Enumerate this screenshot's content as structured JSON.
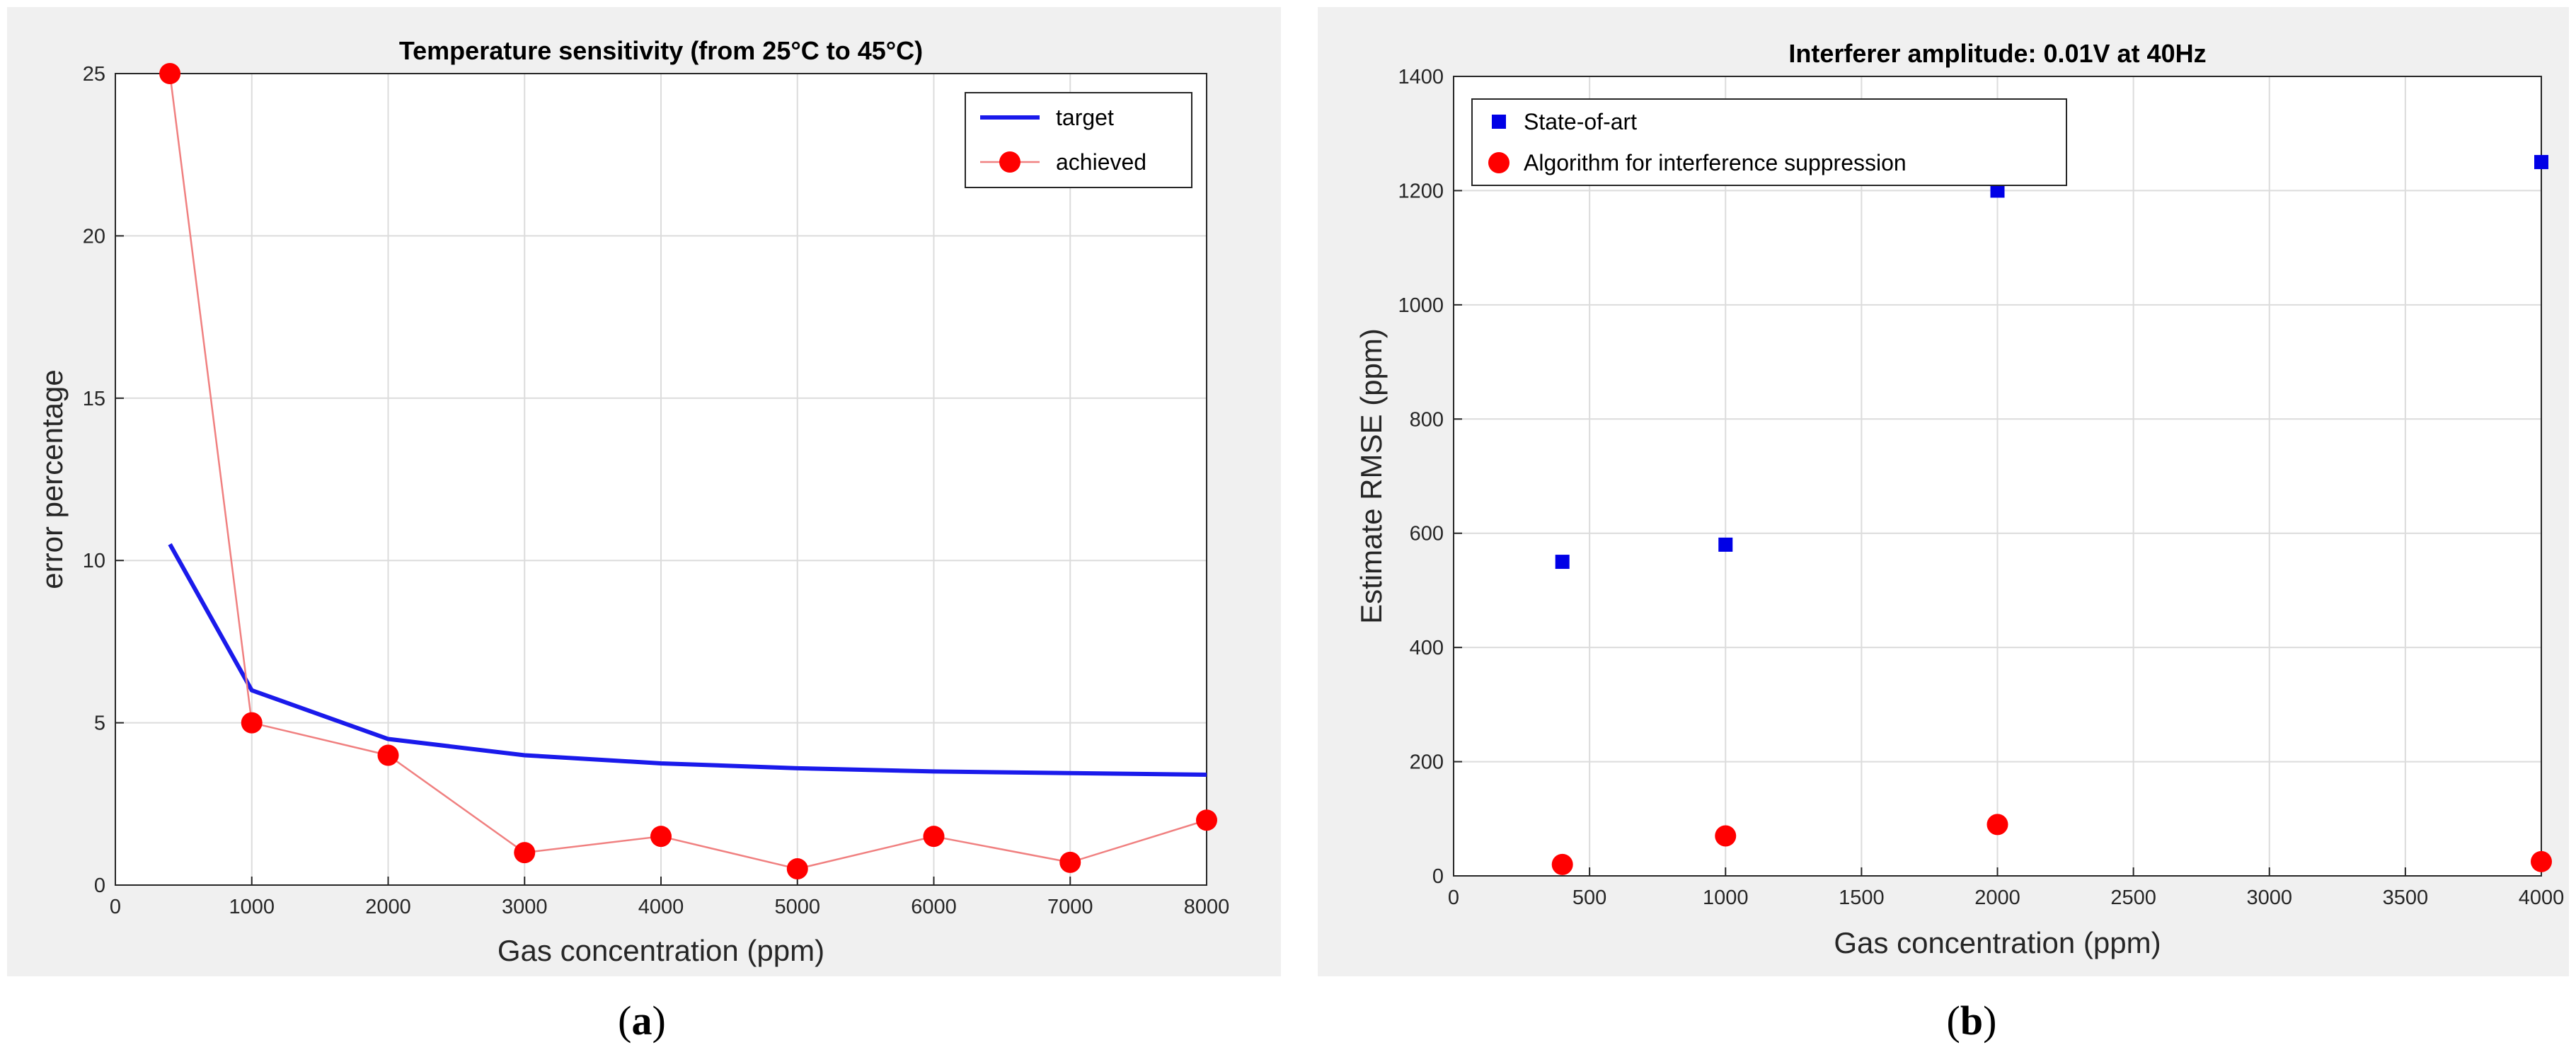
{
  "chart_data": [
    {
      "type": "line",
      "caption": "(a)",
      "caption_parts": [
        "(",
        "a",
        ")"
      ],
      "title": "Temperature sensitivity (from 25°C to 45°C)",
      "xlabel": "Gas concentration (ppm)",
      "ylabel": "error percentage",
      "xlim": [
        0,
        8000
      ],
      "ylim": [
        0,
        25
      ],
      "xticks": [
        0,
        1000,
        2000,
        3000,
        4000,
        5000,
        6000,
        7000,
        8000
      ],
      "yticks": [
        0,
        5,
        10,
        15,
        20,
        25
      ],
      "grid": true,
      "legend_position": "top-right",
      "series": [
        {
          "name": "target",
          "style": "line",
          "color": "#1a1aeb",
          "x": [
            400,
            1000,
            2000,
            3000,
            4000,
            5000,
            6000,
            7000,
            8000
          ],
          "y": [
            10.5,
            6.0,
            4.5,
            4.0,
            3.75,
            3.6,
            3.5,
            3.45,
            3.4
          ]
        },
        {
          "name": "achieved",
          "style": "line-marker",
          "color": "#ff0000",
          "line_color": "#f08080",
          "x": [
            400,
            1000,
            2000,
            3000,
            4000,
            5000,
            6000,
            7000,
            8000
          ],
          "y": [
            25,
            5,
            4,
            1,
            1.5,
            0.5,
            1.5,
            0.7,
            2
          ]
        }
      ]
    },
    {
      "type": "scatter",
      "caption": "(b)",
      "caption_parts": [
        "(",
        "b",
        ")"
      ],
      "title": "Interferer amplitude: 0.01V at 40Hz",
      "xlabel": "Gas concentration (ppm)",
      "ylabel": "Estimate RMSE (ppm)",
      "xlim": [
        0,
        4000
      ],
      "ylim": [
        0,
        1400
      ],
      "xticks": [
        0,
        500,
        1000,
        1500,
        2000,
        2500,
        3000,
        3500,
        4000
      ],
      "yticks": [
        0,
        200,
        400,
        600,
        800,
        1000,
        1200,
        1400
      ],
      "grid": true,
      "legend_position": "top-left",
      "series": [
        {
          "name": "State-of-art",
          "marker": "square",
          "color": "#0000e6",
          "x": [
            400,
            1000,
            2000,
            4000
          ],
          "y": [
            550,
            580,
            1200,
            1250
          ]
        },
        {
          "name": "Algorithm for interference suppression",
          "marker": "circle",
          "color": "#ff0000",
          "x": [
            400,
            1000,
            2000,
            4000
          ],
          "y": [
            20,
            70,
            90,
            25
          ]
        }
      ]
    }
  ]
}
